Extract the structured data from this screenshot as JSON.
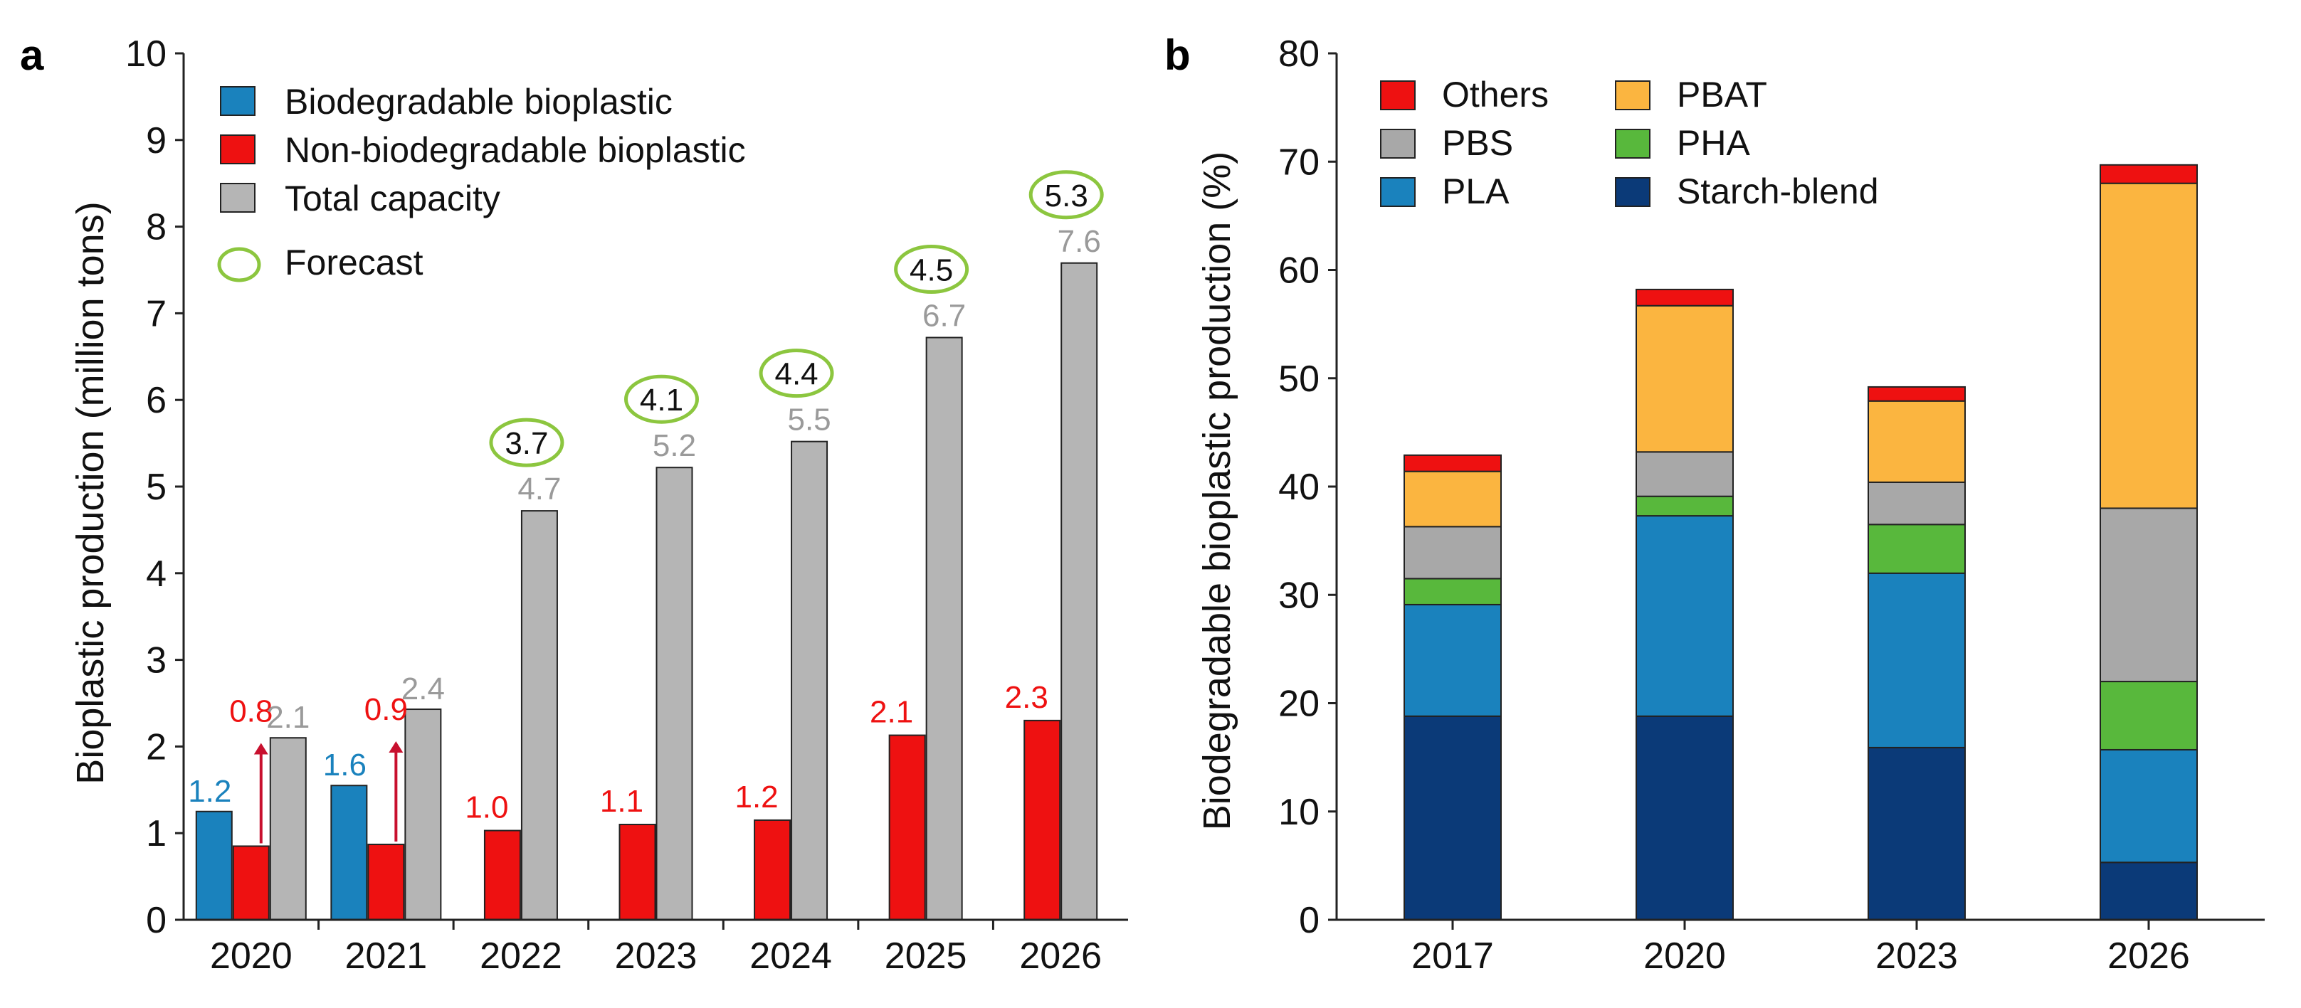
{
  "chart_data": [
    {
      "panel": "a",
      "type": "bar",
      "xlabel": "",
      "ylabel": "Bioplastic production (million tons)",
      "ylim": [
        0,
        10
      ],
      "yticks": [
        0,
        1,
        2,
        3,
        4,
        5,
        6,
        7,
        8,
        9,
        10
      ],
      "categories": [
        "2020",
        "2021",
        "2022",
        "2023",
        "2024",
        "2025",
        "2026"
      ],
      "series": [
        {
          "name": "Biodegradable bioplastic",
          "color": "#1a82bd",
          "values": [
            1.25,
            1.55,
            null,
            null,
            null,
            null,
            null
          ],
          "labels": [
            "1.2",
            "1.6",
            null,
            null,
            null,
            null,
            null
          ]
        },
        {
          "name": "Non-biodegradable bioplastic",
          "color": "#ee1111",
          "values": [
            0.85,
            0.87,
            1.03,
            1.1,
            1.15,
            2.13,
            2.3
          ],
          "labels": [
            "0.8",
            "0.9",
            "1.0",
            "1.1",
            "1.2",
            "2.1",
            "2.3"
          ]
        },
        {
          "name": "Total capacity",
          "color": "#b5b5b5",
          "values": [
            2.1,
            2.43,
            4.72,
            5.22,
            5.52,
            6.72,
            7.58
          ],
          "labels": [
            "2.1",
            "2.4",
            "4.7",
            "5.2",
            "5.5",
            "6.7",
            "7.6"
          ]
        }
      ],
      "forecast_legend": "Forecast",
      "forecast_labels": [
        null,
        null,
        "3.7",
        "4.1",
        "4.4",
        "4.5",
        "5.3"
      ],
      "arrow_color": "#c8102e",
      "forecast_color": "#8cc63f"
    },
    {
      "panel": "b",
      "type": "bar",
      "stacked": true,
      "xlabel": "",
      "ylabel": "Biodegradable bioplastic production (%)",
      "ylim": [
        0,
        80
      ],
      "yticks": [
        0,
        10,
        20,
        30,
        40,
        50,
        60,
        70,
        80
      ],
      "categories": [
        "2017",
        "2020",
        "2023",
        "2026"
      ],
      "series": [
        {
          "name": "Starch-blend",
          "color": "#0b3a78",
          "values": [
            18.8,
            18.8,
            15.9,
            5.3
          ]
        },
        {
          "name": "PLA",
          "color": "#1a82bd",
          "values": [
            10.3,
            18.5,
            16.1,
            10.4
          ]
        },
        {
          "name": "PHA",
          "color": "#58b83c",
          "values": [
            2.4,
            1.8,
            4.5,
            6.3
          ]
        },
        {
          "name": "PBS",
          "color": "#a8a8a8",
          "values": [
            4.8,
            4.1,
            3.9,
            16.0
          ]
        },
        {
          "name": "PBAT",
          "color": "#fbb540",
          "values": [
            5.1,
            13.5,
            7.5,
            30.0
          ]
        },
        {
          "name": "Others",
          "color": "#ee1111",
          "values": [
            1.5,
            1.5,
            1.3,
            1.7
          ]
        }
      ],
      "legend_order": [
        "Others",
        "PBAT",
        "PBS",
        "PHA",
        "PLA",
        "Starch-blend"
      ]
    }
  ]
}
